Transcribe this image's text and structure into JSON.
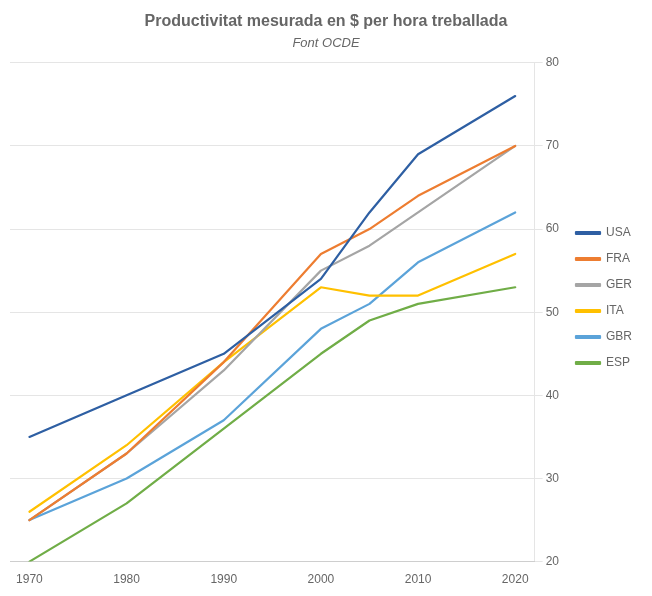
{
  "chart_data": {
    "type": "line",
    "title": "Productivitat mesurada en $ per hora treballada",
    "subtitle": "Font OCDE",
    "x": [
      1970,
      1980,
      1990,
      2000,
      2005,
      2010,
      2020
    ],
    "series": [
      {
        "name": "USA",
        "color": "#2e5fa3",
        "values": [
          35,
          40,
          45,
          54,
          62,
          69,
          76
        ]
      },
      {
        "name": "FRA",
        "color": "#ed7d31",
        "values": [
          25,
          33,
          44,
          57,
          60,
          64,
          70
        ]
      },
      {
        "name": "GER",
        "color": "#a5a5a5",
        "values": [
          25,
          33,
          43,
          55,
          58,
          62,
          70
        ]
      },
      {
        "name": "ITA",
        "color": "#ffc000",
        "values": [
          26,
          34,
          44,
          53,
          52,
          52,
          57
        ]
      },
      {
        "name": "GBR",
        "color": "#5ba3d9",
        "values": [
          25,
          30,
          37,
          48,
          51,
          56,
          62
        ]
      },
      {
        "name": "ESP",
        "color": "#70ad47",
        "values": [
          20,
          27,
          36,
          45,
          49,
          51,
          53
        ]
      }
    ],
    "xlim": [
      1968,
      2022
    ],
    "xticks": [
      1970,
      1980,
      1990,
      2000,
      2010,
      2020
    ],
    "ylim": [
      20,
      80
    ],
    "yticks": [
      20,
      30,
      40,
      50,
      60,
      70,
      80
    ],
    "grid": true,
    "legend": "right"
  }
}
